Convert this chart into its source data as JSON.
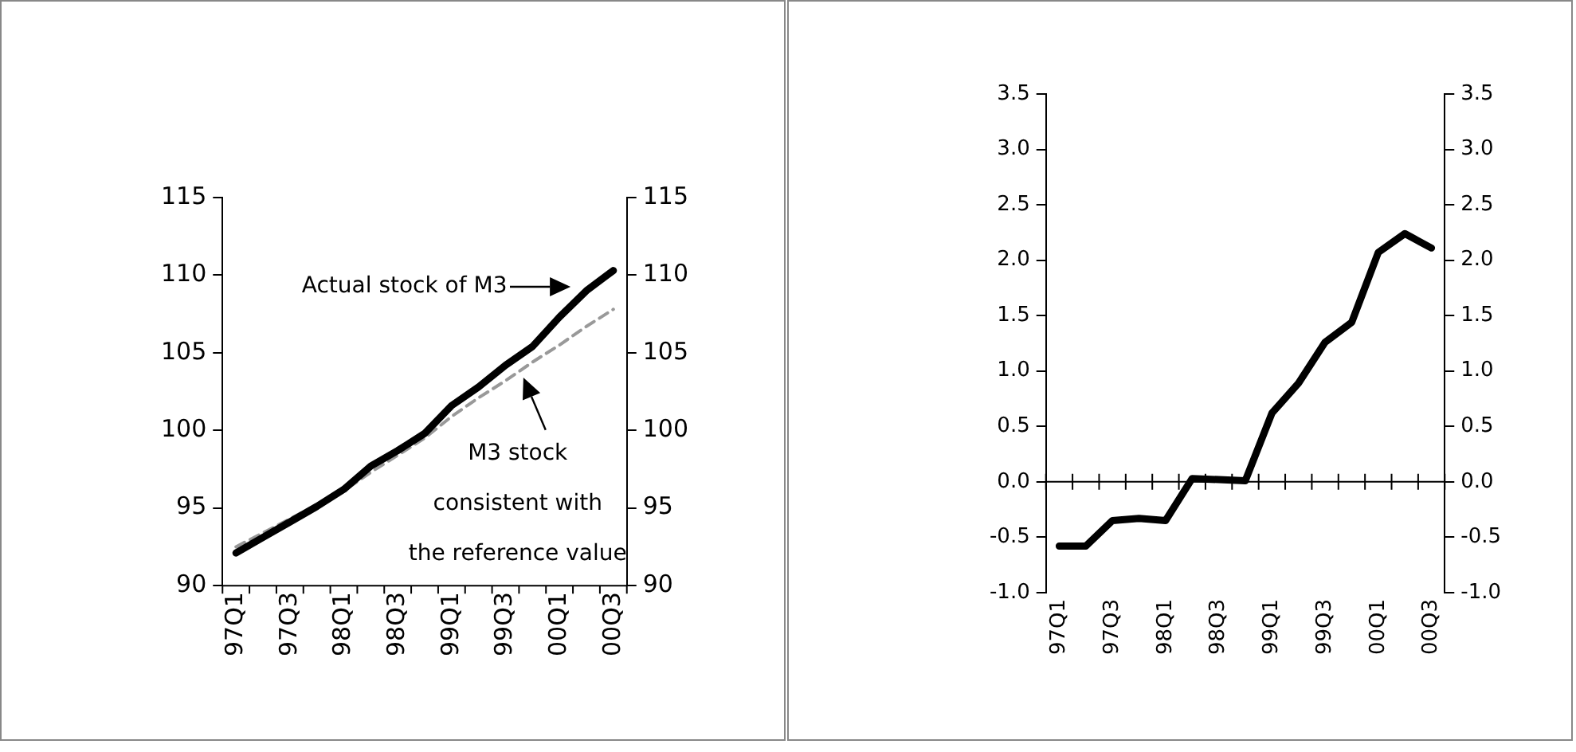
{
  "chart_data": [
    {
      "type": "line",
      "categories": [
        "97Q1",
        null,
        "97Q3",
        null,
        "98Q1",
        null,
        "98Q3",
        null,
        "99Q1",
        null,
        "99Q3",
        null,
        "00Q1",
        null,
        "00Q3"
      ],
      "series": [
        {
          "color": "#000000",
          "values": [
            92.1,
            93.1,
            94.1,
            95.1,
            96.2,
            97.7,
            98.7,
            99.8,
            101.6,
            102.8,
            104.2,
            105.4,
            107.3,
            109.0,
            110.3
          ]
        },
        {
          "color": "#999999",
          "line_style": "dashed",
          "values": [
            92.5,
            93.4,
            94.3,
            95.2,
            96.1,
            97.3,
            98.4,
            99.5,
            100.9,
            102.1,
            103.2,
            104.4,
            105.5,
            106.7,
            107.8
          ]
        }
      ],
      "ylim": [
        90,
        115
      ],
      "yticks": [
        90,
        95,
        100,
        105,
        110,
        115
      ],
      "y2lim": [
        90,
        115
      ],
      "y2ticks": [
        90,
        95,
        100,
        105,
        110,
        115
      ],
      "annotations": [
        "Actual stock of M3",
        "M3 stock\nconsistent with\nthe reference value"
      ],
      "grid": false,
      "legend": false,
      "marker": "none"
    },
    {
      "type": "line",
      "categories": [
        "97Q1",
        null,
        "97Q3",
        null,
        "98Q1",
        null,
        "98Q3",
        null,
        "99Q1",
        null,
        "99Q3",
        null,
        "00Q1",
        null,
        "00Q3"
      ],
      "series": [
        {
          "color": "#000000",
          "values": [
            -0.58,
            -0.58,
            -0.35,
            -0.33,
            -0.35,
            0.03,
            0.02,
            0.01,
            0.62,
            0.89,
            1.26,
            1.44,
            2.07,
            2.24,
            2.11
          ]
        }
      ],
      "ylim": [
        -1,
        3.5
      ],
      "yticks": [
        {
          "value": -1,
          "label": "-1.0"
        },
        {
          "value": -0.5,
          "label": "-0.5"
        },
        {
          "value": 0,
          "label": "0.0"
        },
        {
          "value": 0.5,
          "label": "0.5"
        },
        {
          "value": 1,
          "label": "1.0"
        },
        {
          "value": 1.5,
          "label": "1.5"
        },
        {
          "value": 2,
          "label": "2.0"
        },
        {
          "value": 2.5,
          "label": "2.5"
        },
        {
          "value": 3,
          "label": "3.0"
        },
        {
          "value": 3.5,
          "label": "3.5"
        }
      ],
      "y2lim": [
        -1,
        3.5
      ],
      "y2ticks": [
        {
          "value": -1,
          "label": "-1.0"
        },
        {
          "value": -0.5,
          "label": "-0.5"
        },
        {
          "value": 0,
          "label": "0.0"
        },
        {
          "value": 0.5,
          "label": "0.5"
        },
        {
          "value": 1,
          "label": "1.0"
        },
        {
          "value": 1.5,
          "label": "1.5"
        },
        {
          "value": 2,
          "label": "2.0"
        },
        {
          "value": 2.5,
          "label": "2.5"
        },
        {
          "value": 3,
          "label": "3.0"
        },
        {
          "value": 3.5,
          "label": "3.5"
        }
      ],
      "ref_lines": [
        {
          "axis": "y",
          "value": 0,
          "color": "#000000"
        }
      ],
      "grid": false,
      "legend": false,
      "marker": "none"
    }
  ]
}
